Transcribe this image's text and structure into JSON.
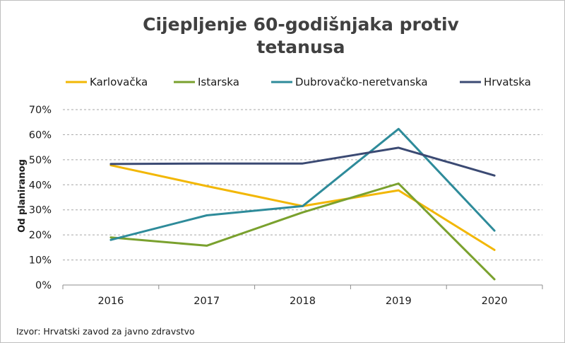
{
  "chart_data": {
    "type": "line",
    "title_lines": [
      "Cijepljenje 60-godišnjaka protiv",
      "tetanusa"
    ],
    "xlabel": "",
    "ylabel": "Od planiranog",
    "categories": [
      "2016",
      "2017",
      "2018",
      "2019",
      "2020"
    ],
    "y_ticks": [
      "0%",
      "10%",
      "20%",
      "30%",
      "40%",
      "50%",
      "60%",
      "70%"
    ],
    "ylim": [
      0,
      70
    ],
    "grid": true,
    "legend_position": "top",
    "series": [
      {
        "name": "Karlovačka",
        "color": "#f2b705",
        "values": [
          47.8,
          39.5,
          31.5,
          37.8,
          14.0
        ]
      },
      {
        "name": "Istarska",
        "color": "#7aa12e",
        "values": [
          19.0,
          15.7,
          29.0,
          40.5,
          2.3
        ]
      },
      {
        "name": "Dubrovačko-neretvanska",
        "color": "#2e8b9a",
        "values": [
          18.0,
          27.8,
          31.5,
          62.3,
          21.7
        ]
      },
      {
        "name": "Hrvatska",
        "color": "#3b4a73",
        "values": [
          48.3,
          48.5,
          48.5,
          54.8,
          43.7
        ]
      }
    ],
    "source": "Izvor: Hrvatski zavod za javno zdravstvo"
  }
}
